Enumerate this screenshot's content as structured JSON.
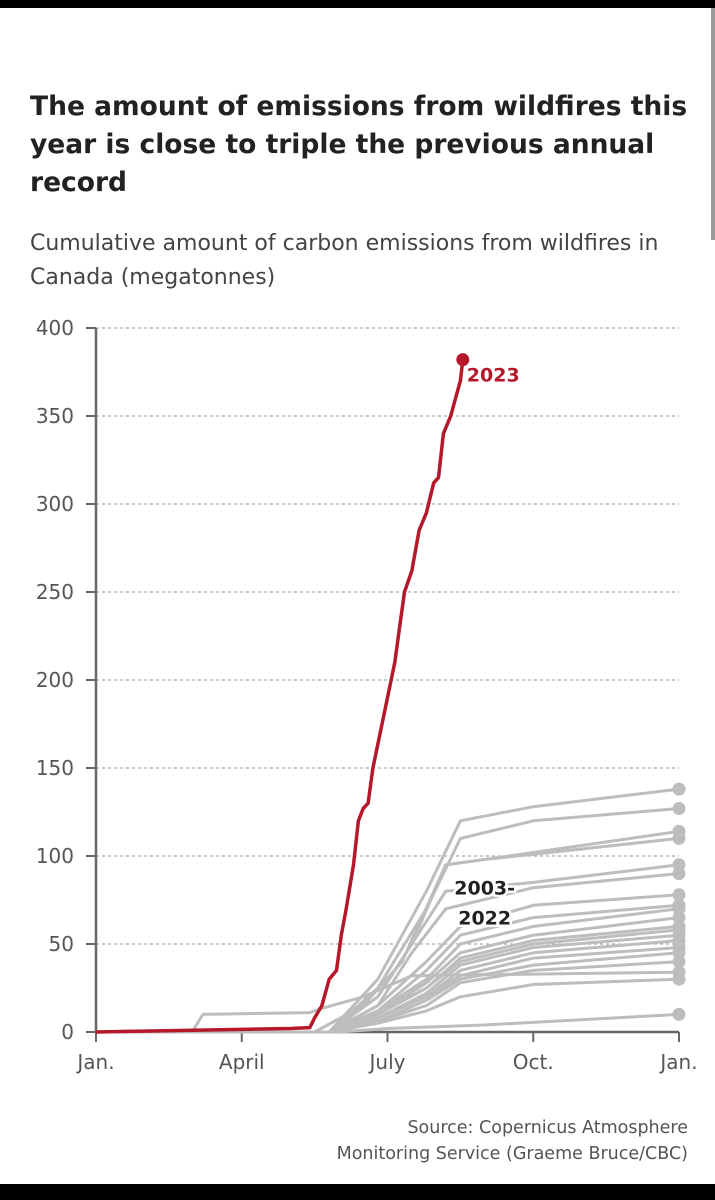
{
  "title": "The amount of emissions from wildfires this year is close to triple the previous annual record",
  "subtitle": "Cumulative amount of carbon emissions from wildfires in Canada (megatonnes)",
  "source_lines": [
    "Source: Copernicus Atmosphere",
    "Monitoring Service (Graeme Bruce/CBC)"
  ],
  "colors": {
    "highlight": "#b5182a",
    "history": "#bdbdbd",
    "grid": "#8fb3b0",
    "axis": "#666666"
  },
  "chart_data": {
    "type": "line",
    "x_unit": "month",
    "xlim": [
      0,
      12
    ],
    "ylim": [
      0,
      400
    ],
    "grid": true,
    "y_ticks": [
      0,
      50,
      100,
      150,
      200,
      250,
      300,
      350,
      400
    ],
    "y_tick_labels": [
      "0",
      "50",
      "100",
      "150",
      "200",
      "250",
      "300",
      "350",
      "400"
    ],
    "x_ticks": [
      0,
      3,
      6,
      9,
      12
    ],
    "x_tick_labels": [
      "Jan.",
      "April",
      "July",
      "Oct.",
      "Jan."
    ],
    "series_2023": {
      "name": "2023",
      "points": [
        [
          0,
          0
        ],
        [
          1,
          0.5
        ],
        [
          2,
          1
        ],
        [
          3,
          1.5
        ],
        [
          4,
          2
        ],
        [
          4.4,
          2.5
        ],
        [
          4.5,
          8
        ],
        [
          4.65,
          15
        ],
        [
          4.8,
          30
        ],
        [
          4.95,
          35
        ],
        [
          5.05,
          55
        ],
        [
          5.15,
          70
        ],
        [
          5.3,
          95
        ],
        [
          5.4,
          120
        ],
        [
          5.5,
          127
        ],
        [
          5.6,
          130
        ],
        [
          5.7,
          150
        ],
        [
          5.85,
          170
        ],
        [
          6,
          190
        ],
        [
          6.15,
          210
        ],
        [
          6.25,
          230
        ],
        [
          6.35,
          250
        ],
        [
          6.5,
          262
        ],
        [
          6.65,
          285
        ],
        [
          6.8,
          295
        ],
        [
          6.95,
          312
        ],
        [
          7.05,
          315
        ],
        [
          7.15,
          340
        ],
        [
          7.3,
          350
        ],
        [
          7.4,
          360
        ],
        [
          7.5,
          370
        ],
        [
          7.55,
          382
        ]
      ]
    },
    "history_label": [
      "2003-",
      "2022"
    ],
    "history_series": [
      [
        [
          0,
          0
        ],
        [
          2,
          1
        ],
        [
          2.2,
          10
        ],
        [
          4.4,
          11
        ],
        [
          4.6,
          13
        ],
        [
          5.5,
          20
        ],
        [
          6.5,
          32
        ],
        [
          12,
          34
        ]
      ],
      [
        [
          0,
          0
        ],
        [
          4.5,
          0
        ],
        [
          5.5,
          15
        ],
        [
          6.3,
          40
        ],
        [
          7.2,
          95
        ],
        [
          8,
          98
        ],
        [
          12,
          110
        ]
      ],
      [
        [
          0,
          0
        ],
        [
          4.8,
          0
        ],
        [
          5.8,
          30
        ],
        [
          6.8,
          80
        ],
        [
          7.5,
          120
        ],
        [
          9,
          128
        ],
        [
          12,
          138
        ]
      ],
      [
        [
          0,
          0
        ],
        [
          4.8,
          0
        ],
        [
          5.8,
          25
        ],
        [
          6.8,
          70
        ],
        [
          7.5,
          110
        ],
        [
          9,
          120
        ],
        [
          12,
          127
        ]
      ],
      [
        [
          0,
          0
        ],
        [
          4.8,
          0
        ],
        [
          5.8,
          20
        ],
        [
          6.5,
          50
        ],
        [
          7.2,
          95
        ],
        [
          8.5,
          100
        ],
        [
          12,
          114
        ]
      ],
      [
        [
          0,
          0
        ],
        [
          4.8,
          0
        ],
        [
          5.8,
          20
        ],
        [
          6.5,
          50
        ],
        [
          7.2,
          80
        ],
        [
          9,
          85
        ],
        [
          12,
          95
        ]
      ],
      [
        [
          0,
          0
        ],
        [
          4.8,
          0
        ],
        [
          5.8,
          15
        ],
        [
          6.5,
          45
        ],
        [
          7.2,
          70
        ],
        [
          9,
          82
        ],
        [
          12,
          90
        ]
      ],
      [
        [
          0,
          0
        ],
        [
          4.8,
          0
        ],
        [
          5.8,
          15
        ],
        [
          6.8,
          40
        ],
        [
          7.5,
          60
        ],
        [
          9,
          72
        ],
        [
          12,
          78
        ]
      ],
      [
        [
          0,
          0
        ],
        [
          4.8,
          0
        ],
        [
          5.8,
          12
        ],
        [
          6.8,
          35
        ],
        [
          7.5,
          55
        ],
        [
          9,
          65
        ],
        [
          12,
          72
        ]
      ],
      [
        [
          0,
          0
        ],
        [
          4.8,
          0
        ],
        [
          5.8,
          12
        ],
        [
          6.8,
          30
        ],
        [
          7.5,
          50
        ],
        [
          9,
          60
        ],
        [
          12,
          70
        ]
      ],
      [
        [
          0,
          0
        ],
        [
          4.8,
          0
        ],
        [
          5.8,
          10
        ],
        [
          6.8,
          28
        ],
        [
          7.5,
          45
        ],
        [
          9,
          55
        ],
        [
          12,
          65
        ]
      ],
      [
        [
          0,
          0
        ],
        [
          4.8,
          0
        ],
        [
          5.8,
          10
        ],
        [
          6.8,
          25
        ],
        [
          7.5,
          42
        ],
        [
          9,
          52
        ],
        [
          12,
          60
        ]
      ],
      [
        [
          0,
          0
        ],
        [
          4.8,
          0
        ],
        [
          5.8,
          10
        ],
        [
          6.8,
          25
        ],
        [
          7.5,
          40
        ],
        [
          9,
          50
        ],
        [
          12,
          58
        ]
      ],
      [
        [
          0,
          0
        ],
        [
          4.8,
          0
        ],
        [
          5.8,
          8
        ],
        [
          6.8,
          22
        ],
        [
          7.5,
          38
        ],
        [
          9,
          48
        ],
        [
          12,
          55
        ]
      ],
      [
        [
          0,
          0
        ],
        [
          4.8,
          0
        ],
        [
          5.8,
          8
        ],
        [
          6.8,
          20
        ],
        [
          7.5,
          35
        ],
        [
          9,
          45
        ],
        [
          12,
          52
        ]
      ],
      [
        [
          0,
          0
        ],
        [
          4.8,
          0
        ],
        [
          5.8,
          8
        ],
        [
          6.8,
          20
        ],
        [
          7.5,
          32
        ],
        [
          9,
          42
        ],
        [
          12,
          48
        ]
      ],
      [
        [
          0,
          0
        ],
        [
          4.8,
          0
        ],
        [
          5.8,
          6
        ],
        [
          6.8,
          18
        ],
        [
          7.5,
          30
        ],
        [
          9,
          38
        ],
        [
          12,
          45
        ]
      ],
      [
        [
          0,
          0
        ],
        [
          4.8,
          0
        ],
        [
          5.8,
          6
        ],
        [
          6.8,
          15
        ],
        [
          7.5,
          28
        ],
        [
          9,
          35
        ],
        [
          12,
          40
        ]
      ],
      [
        [
          0,
          0
        ],
        [
          4.8,
          0
        ],
        [
          5.8,
          5
        ],
        [
          6.8,
          12
        ],
        [
          7.5,
          20
        ],
        [
          9,
          27
        ],
        [
          12,
          30
        ]
      ],
      [
        [
          0,
          0
        ],
        [
          5,
          0
        ],
        [
          6,
          2
        ],
        [
          8,
          4
        ],
        [
          12,
          10
        ]
      ]
    ]
  }
}
